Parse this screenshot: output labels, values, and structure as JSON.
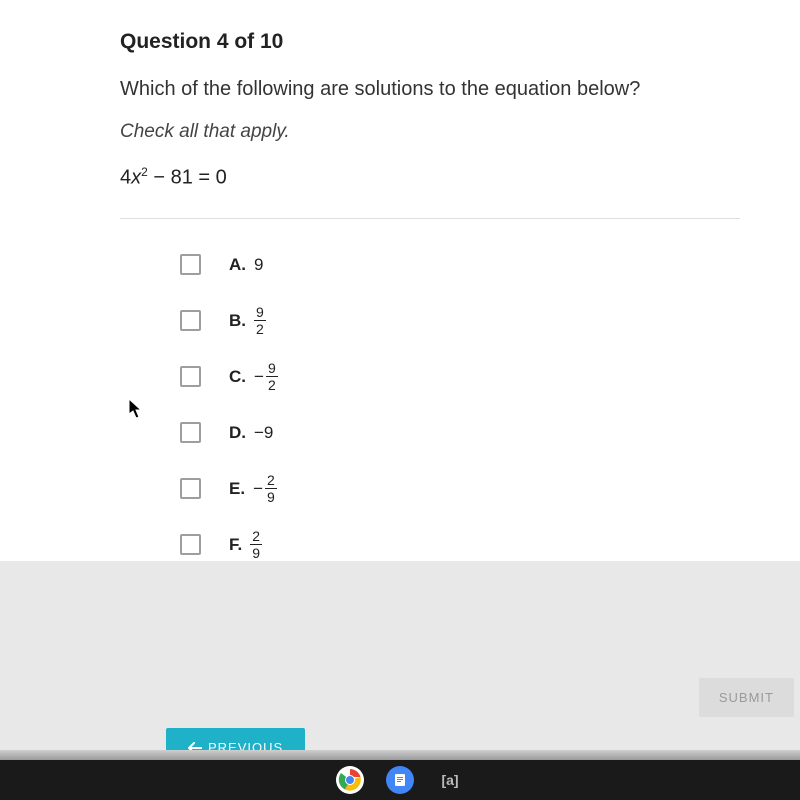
{
  "question": {
    "header": "Question 4 of 10",
    "prompt": "Which of the following are solutions to the equation below?",
    "instruction": "Check all that apply.",
    "equation_lhs_coeff": "4",
    "equation_var": "x",
    "equation_exp": "2",
    "equation_rest": " − 81 = 0"
  },
  "options": [
    {
      "letter": "A.",
      "type": "plain",
      "value": "9"
    },
    {
      "letter": "B.",
      "type": "frac",
      "neg": false,
      "num": "9",
      "den": "2"
    },
    {
      "letter": "C.",
      "type": "frac",
      "neg": true,
      "num": "9",
      "den": "2"
    },
    {
      "letter": "D.",
      "type": "plain",
      "value": "−9"
    },
    {
      "letter": "E.",
      "type": "frac",
      "neg": true,
      "num": "2",
      "den": "9"
    },
    {
      "letter": "F.",
      "type": "frac",
      "neg": false,
      "num": "2",
      "den": "9"
    }
  ],
  "buttons": {
    "submit": "SUBMIT",
    "previous": "PREVIOUS"
  },
  "colors": {
    "accent": "#1eb1c8",
    "submit_bg": "#dcdcdc",
    "submit_fg": "#9a9a9a",
    "taskbar": "#1a1a1a",
    "checkbox_border": "#9e9e9e"
  },
  "taskbar": {
    "chrome_colors": [
      "#ea4335",
      "#fbbc05",
      "#34a853",
      "#4285f4"
    ],
    "docs_bg": "#4285f4",
    "apex_label": "[a]"
  }
}
